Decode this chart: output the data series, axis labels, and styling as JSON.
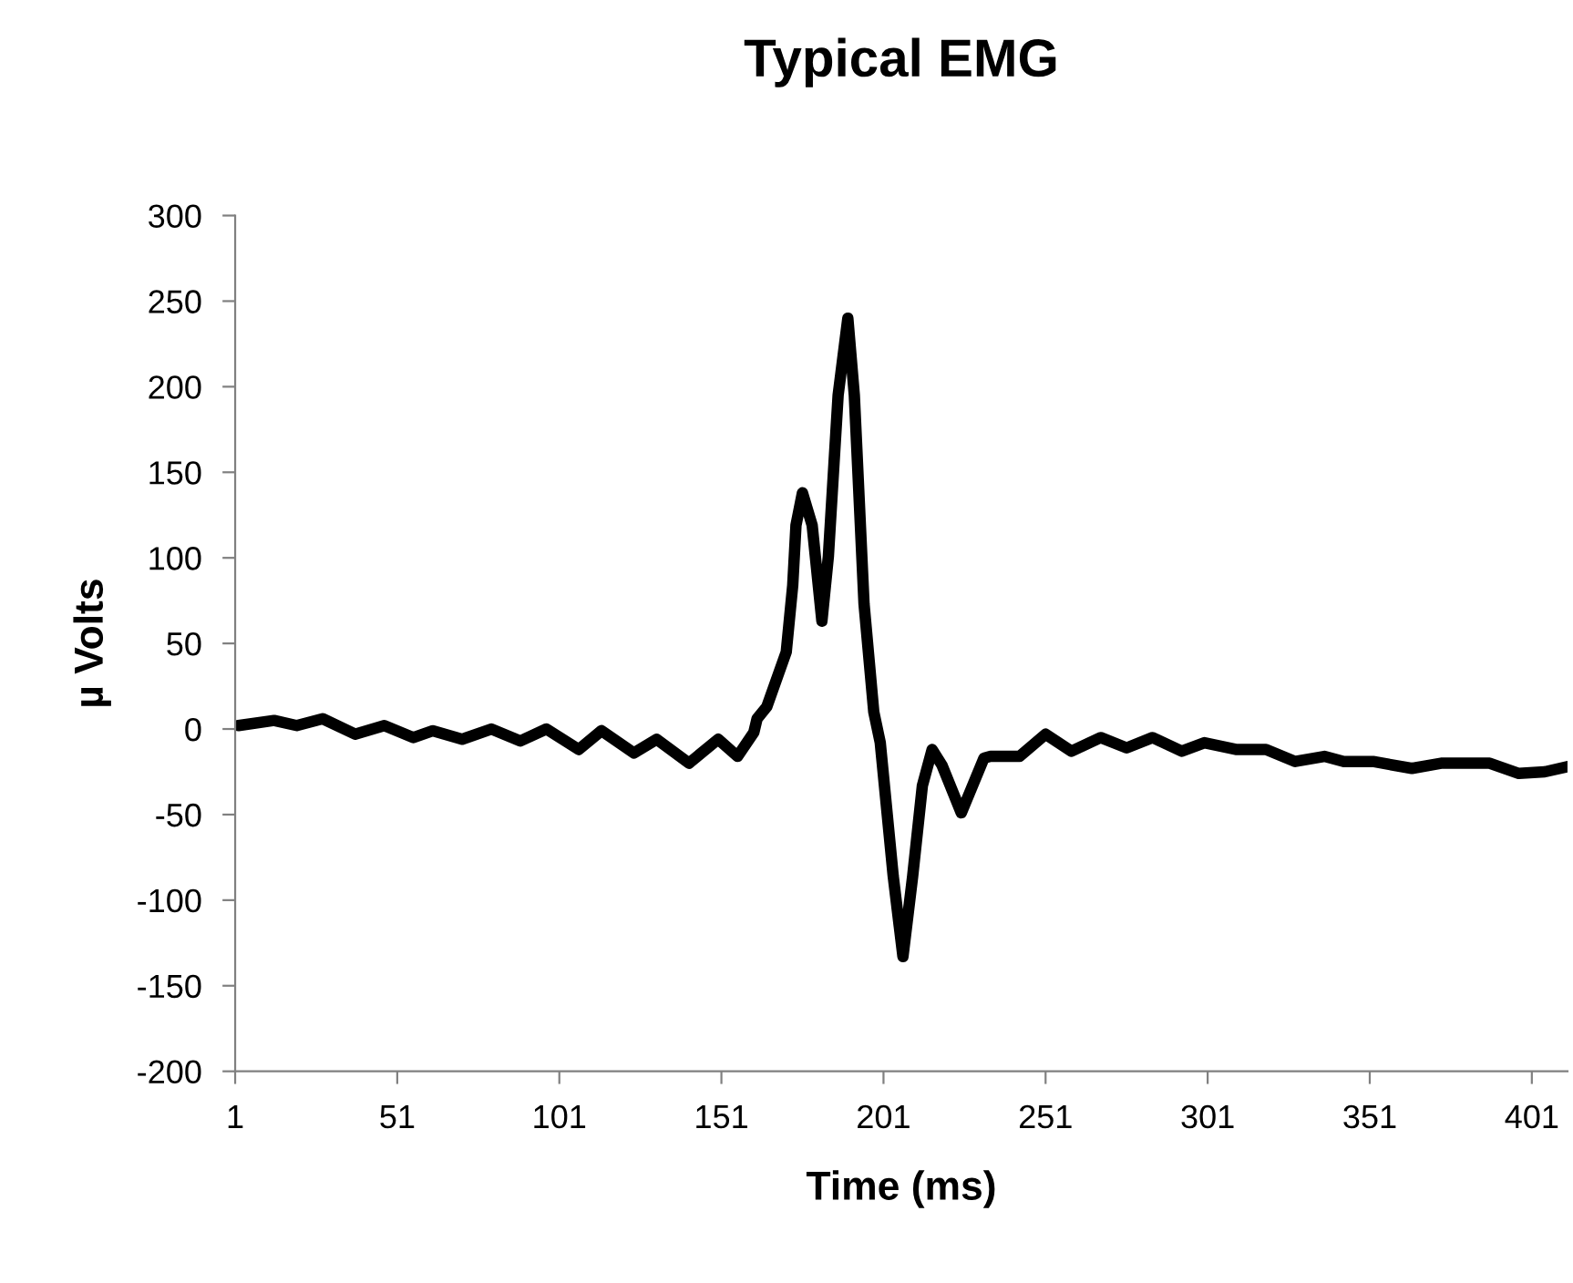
{
  "chart_data": {
    "type": "line",
    "title": "Typical EMG",
    "xlabel": "Time (ms)",
    "ylabel": "µ Volts",
    "x": [
      2,
      13,
      20,
      28,
      38,
      47,
      56,
      62,
      71,
      80,
      89,
      97,
      107,
      114,
      124,
      131,
      141,
      150,
      156,
      161,
      162,
      165,
      171,
      173,
      174,
      176,
      179,
      182,
      184,
      187,
      190,
      192,
      195,
      198,
      200,
      204,
      207,
      210,
      213,
      216,
      219,
      225,
      232,
      234,
      243,
      251,
      259,
      268,
      276,
      284,
      293,
      300,
      310,
      319,
      328,
      337,
      343,
      352,
      364,
      373,
      388,
      397,
      405,
      412
    ],
    "values": [
      2,
      5,
      2,
      6,
      -3,
      2,
      -5,
      -1,
      -6,
      0,
      -7,
      0,
      -12,
      -1,
      -14,
      -6,
      -20,
      -6,
      -16,
      -2,
      6,
      13,
      45,
      84,
      119,
      138,
      119,
      63,
      101,
      195,
      240,
      195,
      73,
      10,
      -8,
      -86,
      -133,
      -86,
      -33,
      -12,
      -21,
      -49,
      -17,
      -16,
      -16,
      -3,
      -13,
      -5,
      -11,
      -5,
      -13,
      -8,
      -12,
      -12,
      -19,
      -16,
      -19,
      -19,
      -23,
      -20,
      -20,
      -26,
      -25,
      -22
    ],
    "color": "#000000",
    "line_style": "solid",
    "marker": "none",
    "grid": false,
    "legend": false,
    "xlim": [
      1,
      412
    ],
    "xticks": [
      1,
      51,
      101,
      151,
      201,
      251,
      301,
      351,
      401
    ],
    "ylim": [
      -200,
      300
    ],
    "yticks": [
      -200,
      -150,
      -100,
      -50,
      0,
      50,
      100,
      150,
      200,
      250,
      300
    ]
  }
}
